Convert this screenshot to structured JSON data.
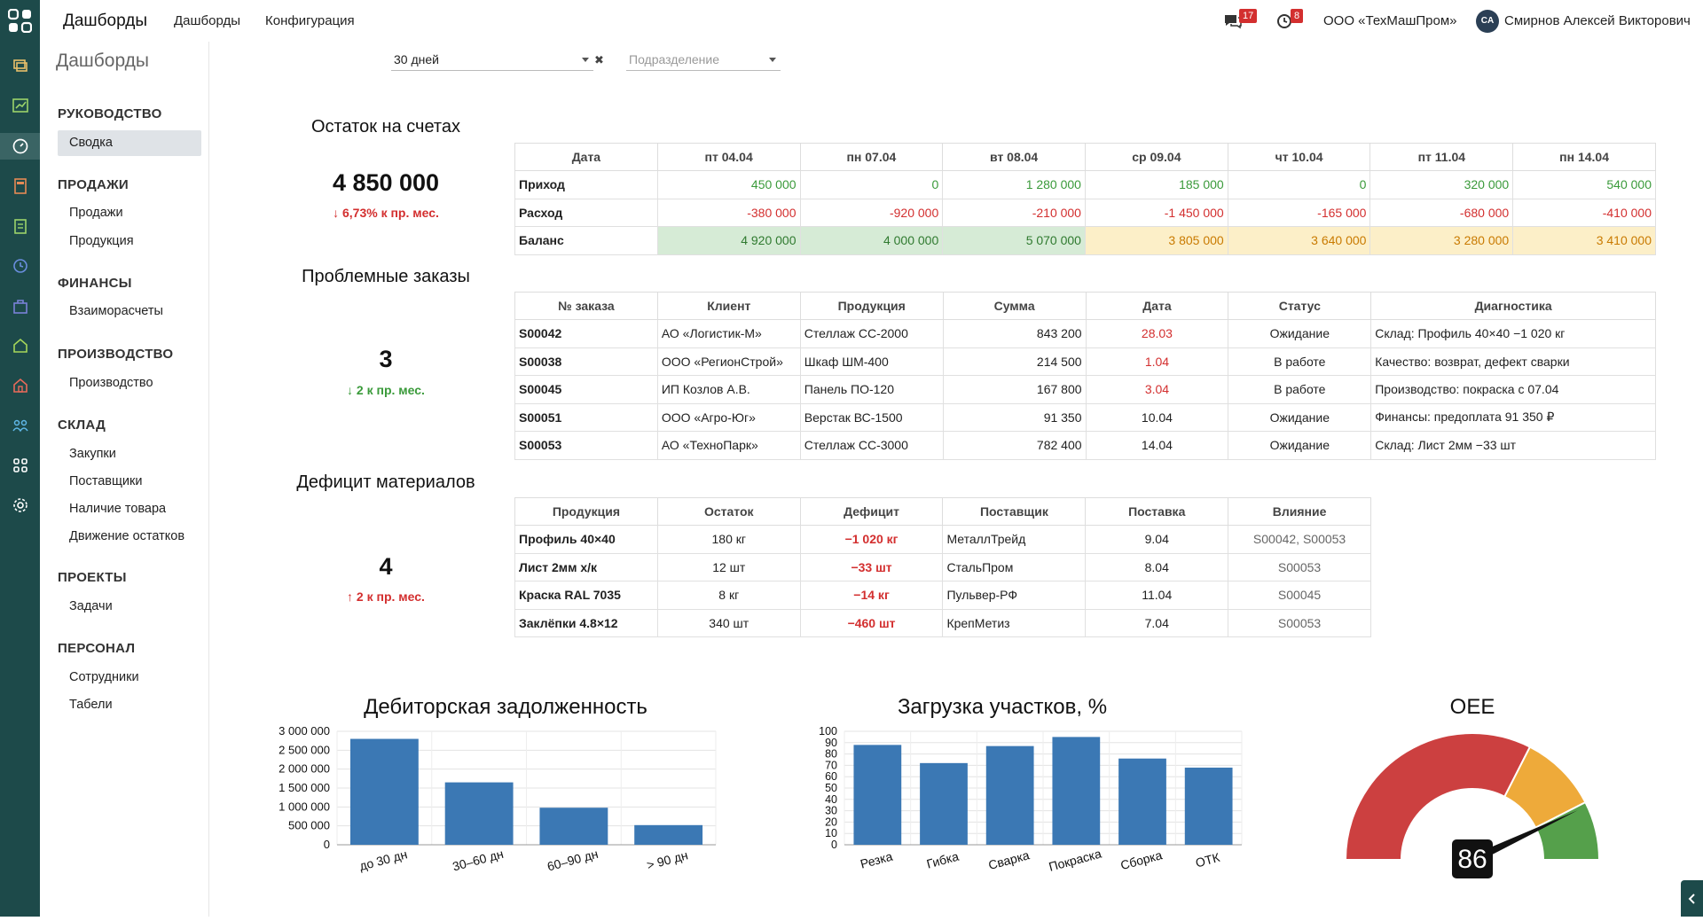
{
  "app": {
    "brand": "Дашборды",
    "nav": [
      "Дашборды",
      "Конфигурация"
    ]
  },
  "topbar": {
    "chat_count": "17",
    "alert_count": "8",
    "org": "ООО «ТехМашПром»",
    "avatar": "CA",
    "user": "Смирнов Алексей Викторович"
  },
  "page": {
    "title": "Дашборды"
  },
  "filters": {
    "period": "30 дней",
    "division_placeholder": "Подразделение",
    "clear": "✖"
  },
  "sidebar": {
    "sections": [
      {
        "title": "РУКОВОДСТВО",
        "items": [
          "Сводка"
        ]
      },
      {
        "title": "ПРОДАЖИ",
        "items": [
          "Продажи",
          "Продукция"
        ]
      },
      {
        "title": "ФИНАНСЫ",
        "items": [
          "Взаиморасчеты"
        ]
      },
      {
        "title": "ПРОИЗВОДСТВО",
        "items": [
          "Производство"
        ]
      },
      {
        "title": "СКЛАД",
        "items": [
          "Закупки",
          "Поставщики",
          "Наличие товара",
          "Движение остатков"
        ]
      },
      {
        "title": "ПРОЕКТЫ",
        "items": [
          "Задачи"
        ]
      },
      {
        "title": "ПЕРСОНАЛ",
        "items": [
          "Сотрудники",
          "Табели"
        ]
      }
    ],
    "active": "Сводка"
  },
  "balance": {
    "title": "Остаток на счетах",
    "value": "4 850 000",
    "delta": "↓ 6,73% к пр. мес.",
    "header": [
      "Дата",
      "пт 04.04",
      "пн 07.04",
      "вт 08.04",
      "ср 09.04",
      "чт 10.04",
      "пт 11.04",
      "пн 14.04"
    ],
    "rows": [
      {
        "label": "Приход",
        "values": [
          "450 000",
          "0",
          "1 280 000",
          "185 000",
          "0",
          "320 000",
          "540 000"
        ]
      },
      {
        "label": "Расход",
        "values": [
          "-380 000",
          "-920 000",
          "-210 000",
          "-1 450 000",
          "-165 000",
          "-680 000",
          "-410 000"
        ]
      },
      {
        "label": "Баланс",
        "values": [
          "4 920 000",
          "4 000 000",
          "5 070 000",
          "3 805 000",
          "3 640 000",
          "3 280 000",
          "3 410 000"
        ]
      }
    ]
  },
  "orders": {
    "title": "Проблемные заказы",
    "value": "3",
    "delta": "↓ 2 к пр. мес.",
    "header": [
      "№ заказа",
      "Клиент",
      "Продукция",
      "Сумма",
      "Дата",
      "Статус",
      "Диагностика"
    ],
    "rows": [
      [
        "S00042",
        "АО «Логистик-М»",
        "Стеллаж СС-2000",
        "843 200",
        "28.03",
        "Ожидание",
        "Склад: Профиль 40×40 −1 020 кг"
      ],
      [
        "S00038",
        "ООО «РегионСтрой»",
        "Шкаф ШМ-400",
        "214 500",
        "1.04",
        "В работе",
        "Качество: возврат, дефект сварки"
      ],
      [
        "S00045",
        "ИП Козлов А.В.",
        "Панель ПО-120",
        "167 800",
        "3.04",
        "В работе",
        "Производство: покраска с 07.04"
      ],
      [
        "S00051",
        "ООО «Агро-Юг»",
        "Верстак ВС-1500",
        "91 350",
        "10.04",
        "Ожидание",
        "Финансы: предоплата 91 350 ₽"
      ],
      [
        "S00053",
        "АО «ТехноПарк»",
        "Стеллаж СС-3000",
        "782 400",
        "14.04",
        "Ожидание",
        "Склад: Лист 2мм −33 шт"
      ]
    ],
    "late_dates": [
      "28.03",
      "1.04",
      "3.04"
    ]
  },
  "materials": {
    "title": "Дефицит материалов",
    "value": "4",
    "delta": "↑ 2 к пр. мес.",
    "header": [
      "Продукция",
      "Остаток",
      "Дефицит",
      "Поставщик",
      "Поставка",
      "Влияние"
    ],
    "rows": [
      [
        "Профиль 40×40",
        "180 кг",
        "−1 020 кг",
        "МеталлТрейд",
        "9.04",
        "S00042, S00053"
      ],
      [
        "Лист 2мм х/к",
        "12 шт",
        "−33 шт",
        "СтальПром",
        "8.04",
        "S00053"
      ],
      [
        "Краска RAL 7035",
        "8 кг",
        "−14 кг",
        "Пульвер-РФ",
        "11.04",
        "S00045"
      ],
      [
        "Заклёпки 4.8×12",
        "340 шт",
        "−460 шт",
        "КрепМетиз",
        "7.04",
        "S00053"
      ]
    ]
  },
  "chart_data": [
    {
      "type": "bar",
      "title": "Дебиторская задолженность",
      "categories": [
        "до 30 дн",
        "30–60 дн",
        "60–90 дн",
        "> 90 дн"
      ],
      "values": [
        2800000,
        1650000,
        980000,
        520000
      ],
      "ylim": [
        0,
        3000000
      ],
      "yticks": [
        "0",
        "500 000",
        "1 000 000",
        "1 500 000",
        "2 000 000",
        "2 500 000",
        "3 000 000"
      ],
      "color": "#3b78b4"
    },
    {
      "type": "bar",
      "title": "Загрузка участков, %",
      "categories": [
        "Резка",
        "Гибка",
        "Сварка",
        "Покраска",
        "Сборка",
        "ОТК"
      ],
      "values": [
        88,
        72,
        87,
        95,
        76,
        68
      ],
      "ylim": [
        0,
        100
      ],
      "yticks": [
        "0",
        "10",
        "20",
        "30",
        "40",
        "50",
        "60",
        "70",
        "80",
        "90",
        "100"
      ],
      "color": "#3b78b4"
    },
    {
      "type": "gauge",
      "title": "OEE",
      "value": 86,
      "display": "86",
      "range": [
        0,
        100
      ],
      "bands": [
        {
          "to": 65,
          "color": "#cc4040"
        },
        {
          "to": 85,
          "color": "#eeaa3a"
        },
        {
          "to": 100,
          "color": "#55a04b"
        }
      ]
    }
  ]
}
